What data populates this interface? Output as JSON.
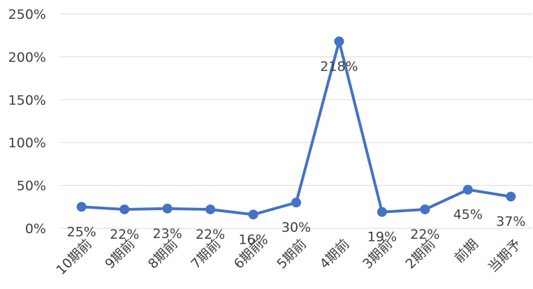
{
  "chart_data": {
    "type": "line",
    "categories": [
      "10期前",
      "9期前",
      "8期前",
      "7期前",
      "6期前",
      "5期前",
      "4期前",
      "3期前",
      "2期前",
      "前期",
      "当期予"
    ],
    "series": [
      {
        "values": [
          25,
          22,
          23,
          22,
          16,
          30,
          218,
          19,
          22,
          45,
          37
        ],
        "data_labels": [
          "25%",
          "22%",
          "23%",
          "22%",
          "16%",
          "30%",
          "218%",
          "19%",
          "22%",
          "45%",
          "37%"
        ],
        "color": "#4472c4"
      }
    ],
    "ylim": [
      0,
      250
    ],
    "y_ticks": [
      0,
      50,
      100,
      150,
      200,
      250
    ],
    "y_tick_labels": [
      "0%",
      "50%",
      "100%",
      "150%",
      "200%",
      "250%"
    ],
    "grid": true,
    "legend": "none",
    "title": "",
    "xlabel": "",
    "ylabel": ""
  }
}
